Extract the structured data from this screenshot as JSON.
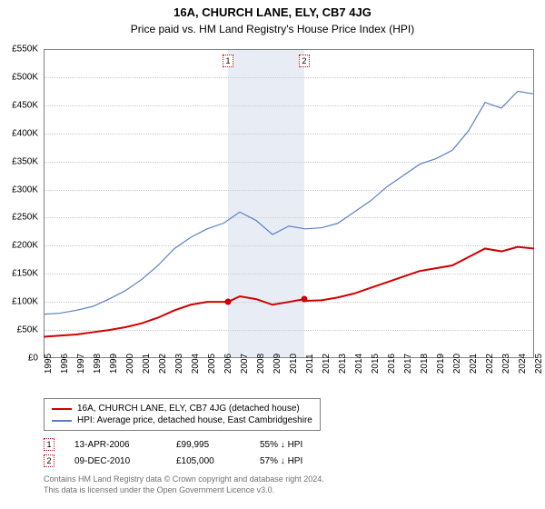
{
  "title": "16A, CHURCH LANE, ELY, CB7 4JG",
  "subtitle": "Price paid vs. HM Land Registry's House Price Index (HPI)",
  "chart": {
    "type": "line",
    "background_color": "#ffffff",
    "grid_color": "#c8c8c8",
    "border_color": "#808080",
    "y": {
      "min": 0,
      "max": 550,
      "step": 50,
      "labels": [
        "£0",
        "£50K",
        "£100K",
        "£150K",
        "£200K",
        "£250K",
        "£300K",
        "£350K",
        "£400K",
        "£450K",
        "£500K",
        "£550K"
      ]
    },
    "x": {
      "min": 1995,
      "max": 2025,
      "labels": [
        "1995",
        "1996",
        "1997",
        "1998",
        "1999",
        "2000",
        "2001",
        "2002",
        "2003",
        "2004",
        "2005",
        "2006",
        "2007",
        "2008",
        "2009",
        "2010",
        "2011",
        "2012",
        "2013",
        "2014",
        "2015",
        "2016",
        "2017",
        "2018",
        "2019",
        "2020",
        "2021",
        "2022",
        "2023",
        "2024",
        "2025"
      ]
    },
    "band": {
      "start": 2006.28,
      "end": 2010.94,
      "color": "#e8edf5"
    },
    "markers": [
      {
        "idx": "1",
        "year": 2006.28,
        "box_border": "#d00000"
      },
      {
        "idx": "2",
        "year": 2010.94,
        "box_border": "#d00000"
      }
    ],
    "series": [
      {
        "name": "property",
        "color": "#d00000",
        "width": 2,
        "points": [
          [
            1995,
            38
          ],
          [
            1996,
            40
          ],
          [
            1997,
            42
          ],
          [
            1998,
            46
          ],
          [
            1999,
            50
          ],
          [
            2000,
            55
          ],
          [
            2001,
            62
          ],
          [
            2002,
            72
          ],
          [
            2003,
            85
          ],
          [
            2004,
            95
          ],
          [
            2005,
            100
          ],
          [
            2006,
            100
          ],
          [
            2006.28,
            100
          ],
          [
            2007,
            110
          ],
          [
            2008,
            105
          ],
          [
            2009,
            95
          ],
          [
            2010,
            100
          ],
          [
            2010.94,
            105
          ],
          [
            2011,
            102
          ],
          [
            2012,
            103
          ],
          [
            2013,
            108
          ],
          [
            2014,
            115
          ],
          [
            2015,
            125
          ],
          [
            2016,
            135
          ],
          [
            2017,
            145
          ],
          [
            2018,
            155
          ],
          [
            2019,
            160
          ],
          [
            2020,
            165
          ],
          [
            2021,
            180
          ],
          [
            2022,
            195
          ],
          [
            2023,
            190
          ],
          [
            2024,
            198
          ],
          [
            2025,
            195
          ]
        ]
      },
      {
        "name": "hpi",
        "color": "#5b7fc7",
        "width": 1.2,
        "points": [
          [
            1995,
            78
          ],
          [
            1996,
            80
          ],
          [
            1997,
            85
          ],
          [
            1998,
            92
          ],
          [
            1999,
            105
          ],
          [
            2000,
            120
          ],
          [
            2001,
            140
          ],
          [
            2002,
            165
          ],
          [
            2003,
            195
          ],
          [
            2004,
            215
          ],
          [
            2005,
            230
          ],
          [
            2006,
            240
          ],
          [
            2007,
            260
          ],
          [
            2008,
            245
          ],
          [
            2009,
            220
          ],
          [
            2010,
            235
          ],
          [
            2011,
            230
          ],
          [
            2012,
            232
          ],
          [
            2013,
            240
          ],
          [
            2014,
            260
          ],
          [
            2015,
            280
          ],
          [
            2016,
            305
          ],
          [
            2017,
            325
          ],
          [
            2018,
            345
          ],
          [
            2019,
            355
          ],
          [
            2020,
            370
          ],
          [
            2021,
            405
          ],
          [
            2022,
            455
          ],
          [
            2023,
            445
          ],
          [
            2024,
            475
          ],
          [
            2025,
            470
          ]
        ]
      }
    ],
    "dots": [
      {
        "year": 2006.28,
        "value": 100,
        "color": "#d00000"
      },
      {
        "year": 2010.94,
        "value": 105,
        "color": "#d00000"
      }
    ]
  },
  "legend": {
    "items": [
      {
        "color": "#d00000",
        "label": "16A, CHURCH LANE, ELY, CB7 4JG (detached house)"
      },
      {
        "color": "#5b7fc7",
        "label": "HPI: Average price, detached house, East Cambridgeshire"
      }
    ]
  },
  "sales": [
    {
      "idx": "1",
      "date": "13-APR-2006",
      "price": "£99,995",
      "diff": "55% ↓ HPI"
    },
    {
      "idx": "2",
      "date": "09-DEC-2010",
      "price": "£105,000",
      "diff": "57% ↓ HPI"
    }
  ],
  "footnote_line1": "Contains HM Land Registry data © Crown copyright and database right 2024.",
  "footnote_line2": "This data is licensed under the Open Government Licence v3.0."
}
